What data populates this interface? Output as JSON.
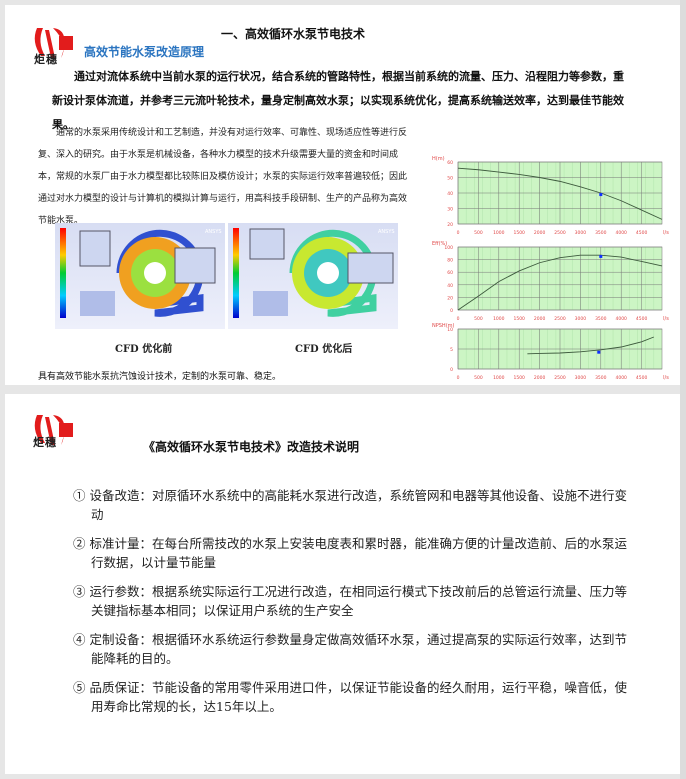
{
  "page1": {
    "logo_text": "炬穗",
    "title": "一、高效循环水泵节电技术",
    "subtitle": "高效节能水泵改造原理",
    "lead": "通过对流体系统中当前水泵的运行状况，结合系统的管路特性，根据当前系统的流量、压力、沿程阻力等参数，重新设计泵体流道，并参考三元流叶轮技术，量身定制高效水泵；以实现系统优化，提高系统输送效率，达到最佳节能效果。",
    "paragraph": "通常的水泵采用传统设计和工艺制造，并没有对运行效率、可靠性、现场适应性等进行反复、深入的研究。由于水泵是机械设备，各种水力模型的技术升级需要大量的资金和时间成本，常规的水泵厂由于水力模型都比较陈旧及模仿设计；水泵的实际运行效率普遍较低；因此通过对水力模型的设计与计算机的模拟计算与运行，用高科技手段研制、生产的产品称为高效节能水泵。",
    "cfd_before_caption": "CFD 优化前",
    "cfd_after_caption": "CFD 优化后",
    "ansys_label": "ANSYS",
    "note": "具有高效节能水泵抗汽蚀设计技术，定制的水泵可靠、稳定。"
  },
  "chart_data": [
    {
      "type": "line",
      "ylabel": "H(m)",
      "xlabel": "l/s",
      "xlim": [
        0,
        5000
      ],
      "ylim": [
        20,
        60
      ],
      "yticks": [
        20,
        30,
        40,
        50,
        60
      ],
      "xticks": [
        0,
        500,
        1000,
        1500,
        2000,
        2500,
        3000,
        3500,
        4000,
        4500
      ],
      "grid": true,
      "x": [
        0,
        500,
        1000,
        1500,
        2000,
        2500,
        3000,
        3500,
        4000,
        4500,
        5000
      ],
      "y": [
        56,
        55,
        53.5,
        52,
        50,
        47.5,
        44,
        40,
        35,
        29,
        23
      ],
      "point": [
        3500,
        39
      ]
    },
    {
      "type": "line",
      "ylabel": "Eff(%)",
      "xlabel": "l/s",
      "xlim": [
        0,
        5000
      ],
      "ylim": [
        0,
        100
      ],
      "yticks": [
        0,
        20,
        40,
        60,
        80,
        100
      ],
      "xticks": [
        0,
        500,
        1000,
        1500,
        2000,
        2500,
        3000,
        3500,
        4000,
        4500
      ],
      "grid": true,
      "x": [
        0,
        500,
        1000,
        1500,
        2000,
        2500,
        3000,
        3500,
        4000,
        4500,
        5000
      ],
      "y": [
        0,
        22,
        45,
        62,
        75,
        83,
        87,
        87,
        84,
        77,
        70
      ],
      "point": [
        3500,
        85
      ]
    },
    {
      "type": "line",
      "ylabel": "NPSH(m)",
      "xlabel": "l/s",
      "xlim": [
        0,
        5000
      ],
      "ylim": [
        0,
        10
      ],
      "yticks": [
        0,
        5,
        10
      ],
      "xticks": [
        0,
        500,
        1000,
        1500,
        2000,
        2500,
        3000,
        3500,
        4000,
        4500
      ],
      "grid": true,
      "x": [
        1700,
        2000,
        2500,
        3000,
        3500,
        4000,
        4500,
        4800
      ],
      "y": [
        3.8,
        3.9,
        4.0,
        4.3,
        4.8,
        5.5,
        6.8,
        8.0
      ],
      "point": [
        3450,
        4.2
      ]
    }
  ],
  "colors": {
    "grid_bg": "#ccf5c4",
    "curve": "#3d5a3d",
    "point": "#1030ff",
    "axis_label": "#e04848",
    "subtitle": "#2a74c0"
  },
  "page2": {
    "logo_text": "炬穗",
    "title": "《高效循环水泵节电技术》改造技术说明",
    "items": [
      "① 设备改造：对原循环水系统中的高能耗水泵进行改造，系统管网和电器等其他设备、设施不进行变动",
      "② 标准计量：在每台所需技改的水泵上安装电度表和累时器，能准确方便的计量改造前、后的水泵运行数据，以计量节能量",
      "③ 运行参数：根据系统实际运行工况进行改造，在相同运行模式下技改前后的总管运行流量、压力等关键指标基本相同；以保证用户系统的生产安全",
      "④ 定制设备：根据循环水系统运行参数量身定做高效循环水泵，通过提高泵的实际运行效率，达到节能降耗的目的。",
      "⑤ 品质保证：节能设备的常用零件采用进口件，以保证节能设备的经久耐用，运行平稳，噪音低，使用寿命比常规的长，达15年以上。"
    ]
  }
}
